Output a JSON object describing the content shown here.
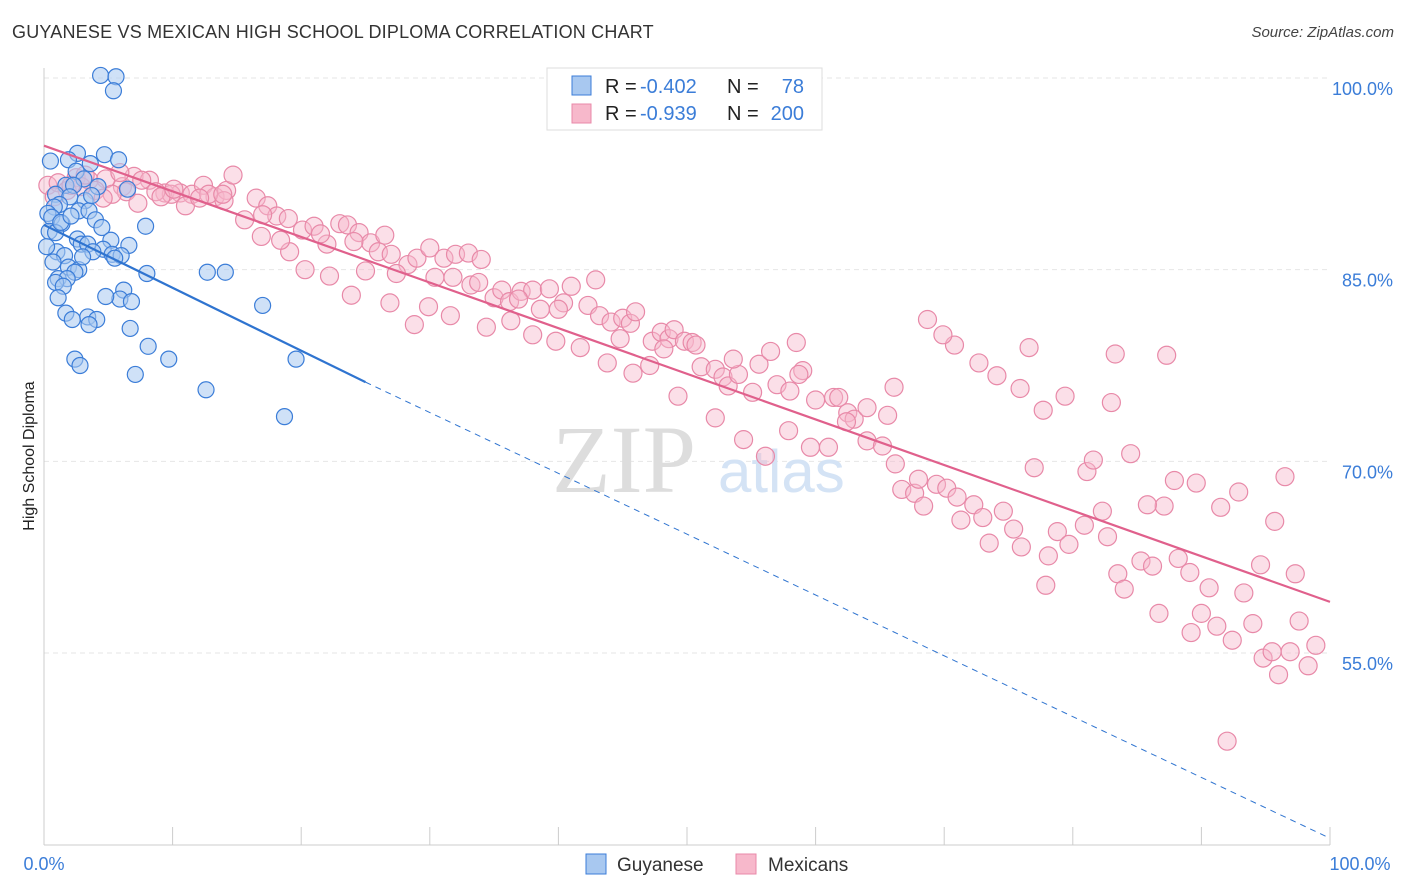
{
  "title": "GUYANESE VS MEXICAN HIGH SCHOOL DIPLOMA CORRELATION CHART",
  "source": "Source: ZipAtlas.com",
  "watermark": {
    "zip": "ZIP",
    "atlas": "atlas"
  },
  "legend": {
    "series": [
      {
        "r_label": "R =",
        "r_value": "-0.402",
        "n_label": "N =",
        "n_value": "78"
      },
      {
        "r_label": "R =",
        "r_value": "-0.939",
        "n_label": "N =",
        "n_value": "200"
      }
    ]
  },
  "colors": {
    "guyanese_fill": "#a8c8f0",
    "guyanese_stroke": "#3b7dd8",
    "guyanese_line": "#2f74d0",
    "mexican_fill": "#f7b8cb",
    "mexican_stroke": "#e889a8",
    "mexican_line": "#e0608c",
    "grid": "#e6e6e6"
  },
  "chart_data": {
    "type": "scatter",
    "title": "GUYANESE VS MEXICAN HIGH SCHOOL DIPLOMA CORRELATION CHART",
    "xlabel": "",
    "ylabel": "High School Diploma",
    "xlim": [
      0,
      100
    ],
    "ylim": [
      40,
      101.5
    ],
    "x_tick_labels": [
      "0.0%",
      "100.0%"
    ],
    "y_ticks": [
      55,
      70,
      85,
      100
    ],
    "y_tick_labels": [
      "55.0%",
      "70.0%",
      "85.0%",
      "100.0%"
    ],
    "grid": true,
    "legend_position": "top-center",
    "series": [
      {
        "name": "Guyanese",
        "R": -0.402,
        "N": 78,
        "trend": {
          "x0": 0,
          "y0": 88.5,
          "x1": 25,
          "y1": 76.2,
          "dashed_to_x": 100,
          "dashed_to_y": 40.5
        },
        "points": [
          [
            4.4,
            100.2
          ],
          [
            5.6,
            100.1
          ],
          [
            5.4,
            99.0
          ],
          [
            2.6,
            94.1
          ],
          [
            4.7,
            94.0
          ],
          [
            1.9,
            93.6
          ],
          [
            5.8,
            93.6
          ],
          [
            0.5,
            93.5
          ],
          [
            3.6,
            93.3
          ],
          [
            2.5,
            92.7
          ],
          [
            3.1,
            92.1
          ],
          [
            1.7,
            91.6
          ],
          [
            2.3,
            91.6
          ],
          [
            4.2,
            91.5
          ],
          [
            6.5,
            91.3
          ],
          [
            0.9,
            90.9
          ],
          [
            2.0,
            90.7
          ],
          [
            3.2,
            90.4
          ],
          [
            1.2,
            90.1
          ],
          [
            0.8,
            89.9
          ],
          [
            2.7,
            89.6
          ],
          [
            3.5,
            89.6
          ],
          [
            0.3,
            89.4
          ],
          [
            0.6,
            89.1
          ],
          [
            4.0,
            88.9
          ],
          [
            1.4,
            88.6
          ],
          [
            7.9,
            88.4
          ],
          [
            4.5,
            88.3
          ],
          [
            0.4,
            88.0
          ],
          [
            0.9,
            87.9
          ],
          [
            2.6,
            87.4
          ],
          [
            5.2,
            87.3
          ],
          [
            2.9,
            87.0
          ],
          [
            3.4,
            87.0
          ],
          [
            6.6,
            86.9
          ],
          [
            4.6,
            86.6
          ],
          [
            1.0,
            86.4
          ],
          [
            3.8,
            86.4
          ],
          [
            1.6,
            86.1
          ],
          [
            5.3,
            86.2
          ],
          [
            6.0,
            86.1
          ],
          [
            0.7,
            85.6
          ],
          [
            1.9,
            85.2
          ],
          [
            2.7,
            85.0
          ],
          [
            2.4,
            84.8
          ],
          [
            12.7,
            84.8
          ],
          [
            14.1,
            84.8
          ],
          [
            8.0,
            84.7
          ],
          [
            1.1,
            84.3
          ],
          [
            1.8,
            84.3
          ],
          [
            0.9,
            84.0
          ],
          [
            1.5,
            83.7
          ],
          [
            6.2,
            83.4
          ],
          [
            5.9,
            82.7
          ],
          [
            6.8,
            82.5
          ],
          [
            17.0,
            82.2
          ],
          [
            1.7,
            81.6
          ],
          [
            3.4,
            81.3
          ],
          [
            2.2,
            81.1
          ],
          [
            4.1,
            81.1
          ],
          [
            3.5,
            80.7
          ],
          [
            6.7,
            80.4
          ],
          [
            8.1,
            79.0
          ],
          [
            2.4,
            78.0
          ],
          [
            9.7,
            78.0
          ],
          [
            2.8,
            77.5
          ],
          [
            19.6,
            78.0
          ],
          [
            7.1,
            76.8
          ],
          [
            12.6,
            75.6
          ],
          [
            18.7,
            73.5
          ],
          [
            4.8,
            82.9
          ],
          [
            3.0,
            86.0
          ],
          [
            5.5,
            85.9
          ],
          [
            1.3,
            88.7
          ],
          [
            2.1,
            89.2
          ],
          [
            0.2,
            86.8
          ],
          [
            3.7,
            90.8
          ],
          [
            1.1,
            82.8
          ]
        ]
      },
      {
        "name": "Mexicans",
        "R": -0.939,
        "N": 200,
        "trend": {
          "x0": 0,
          "y0": 94.7,
          "x1": 100,
          "y1": 59.0
        },
        "points": [
          [
            0.3,
            91.6
          ],
          [
            1.1,
            91.8
          ],
          [
            2.5,
            92.2
          ],
          [
            3.5,
            92.0
          ],
          [
            4.8,
            92.1
          ],
          [
            6.1,
            91.5
          ],
          [
            7.0,
            92.3
          ],
          [
            8.2,
            92.0
          ],
          [
            9.4,
            91.0
          ],
          [
            10.6,
            91.0
          ],
          [
            11.5,
            90.9
          ],
          [
            12.4,
            91.6
          ],
          [
            13.3,
            90.7
          ],
          [
            14.2,
            91.2
          ],
          [
            14.7,
            92.4
          ],
          [
            16.5,
            90.6
          ],
          [
            17.4,
            90.0
          ],
          [
            18.1,
            89.2
          ],
          [
            19.0,
            89.0
          ],
          [
            20.1,
            88.1
          ],
          [
            21.0,
            88.4
          ],
          [
            22.0,
            87.0
          ],
          [
            23.0,
            88.6
          ],
          [
            23.6,
            88.5
          ],
          [
            24.5,
            87.9
          ],
          [
            25.4,
            87.1
          ],
          [
            26.0,
            86.4
          ],
          [
            26.5,
            87.7
          ],
          [
            27.0,
            86.2
          ],
          [
            28.3,
            85.4
          ],
          [
            29.0,
            85.9
          ],
          [
            30.0,
            86.7
          ],
          [
            31.1,
            85.9
          ],
          [
            32.0,
            86.2
          ],
          [
            31.8,
            84.4
          ],
          [
            33.0,
            86.3
          ],
          [
            33.2,
            83.8
          ],
          [
            34.0,
            85.8
          ],
          [
            35.0,
            82.8
          ],
          [
            35.6,
            83.4
          ],
          [
            36.2,
            82.5
          ],
          [
            37.1,
            83.3
          ],
          [
            38.0,
            83.4
          ],
          [
            38.6,
            81.9
          ],
          [
            39.3,
            83.5
          ],
          [
            40.4,
            82.4
          ],
          [
            41.0,
            83.7
          ],
          [
            42.3,
            82.2
          ],
          [
            42.9,
            84.2
          ],
          [
            43.2,
            81.4
          ],
          [
            44.1,
            80.9
          ],
          [
            45.0,
            81.2
          ],
          [
            45.6,
            80.8
          ],
          [
            46.0,
            81.7
          ],
          [
            47.3,
            79.4
          ],
          [
            48.0,
            80.1
          ],
          [
            48.6,
            79.6
          ],
          [
            49.0,
            80.3
          ],
          [
            49.8,
            79.4
          ],
          [
            50.4,
            79.3
          ],
          [
            51.1,
            77.4
          ],
          [
            52.2,
            77.2
          ],
          [
            52.8,
            76.6
          ],
          [
            53.2,
            75.9
          ],
          [
            54.0,
            76.8
          ],
          [
            55.1,
            75.4
          ],
          [
            55.6,
            77.6
          ],
          [
            56.5,
            78.6
          ],
          [
            57.0,
            76.0
          ],
          [
            58.0,
            75.5
          ],
          [
            58.5,
            79.3
          ],
          [
            59.0,
            77.1
          ],
          [
            60.0,
            74.8
          ],
          [
            61.4,
            75.0
          ],
          [
            62.5,
            73.8
          ],
          [
            63.0,
            73.3
          ],
          [
            64.0,
            71.6
          ],
          [
            65.2,
            71.2
          ],
          [
            66.2,
            69.8
          ],
          [
            66.7,
            67.8
          ],
          [
            67.7,
            67.5
          ],
          [
            68.4,
            66.5
          ],
          [
            69.4,
            68.2
          ],
          [
            70.2,
            67.9
          ],
          [
            71.3,
            65.4
          ],
          [
            72.3,
            66.6
          ],
          [
            73.0,
            65.6
          ],
          [
            74.6,
            66.1
          ],
          [
            75.4,
            64.7
          ],
          [
            76.0,
            63.3
          ],
          [
            77.0,
            69.5
          ],
          [
            78.1,
            62.6
          ],
          [
            78.8,
            64.5
          ],
          [
            79.7,
            63.5
          ],
          [
            81.1,
            69.2
          ],
          [
            82.3,
            66.1
          ],
          [
            82.7,
            64.1
          ],
          [
            83.5,
            61.2
          ],
          [
            84.0,
            60.0
          ],
          [
            85.3,
            62.2
          ],
          [
            86.2,
            61.8
          ],
          [
            87.1,
            66.5
          ],
          [
            88.2,
            62.4
          ],
          [
            89.1,
            61.3
          ],
          [
            90.0,
            58.1
          ],
          [
            90.6,
            60.1
          ],
          [
            91.2,
            57.1
          ],
          [
            92.4,
            56.0
          ],
          [
            93.3,
            59.7
          ],
          [
            94.0,
            57.3
          ],
          [
            94.8,
            54.6
          ],
          [
            95.5,
            55.1
          ],
          [
            96.0,
            53.3
          ],
          [
            96.9,
            55.1
          ],
          [
            97.6,
            57.5
          ],
          [
            98.3,
            54.0
          ],
          [
            98.9,
            55.6
          ],
          [
            97.3,
            61.2
          ],
          [
            95.7,
            65.3
          ],
          [
            96.5,
            68.8
          ],
          [
            92.9,
            67.6
          ],
          [
            91.5,
            66.4
          ],
          [
            89.6,
            68.3
          ],
          [
            87.9,
            68.5
          ],
          [
            85.8,
            66.6
          ],
          [
            84.5,
            70.6
          ],
          [
            83.0,
            74.6
          ],
          [
            81.6,
            70.1
          ],
          [
            79.4,
            75.1
          ],
          [
            77.7,
            74.0
          ],
          [
            75.9,
            75.7
          ],
          [
            74.1,
            76.7
          ],
          [
            72.7,
            77.7
          ],
          [
            70.8,
            79.1
          ],
          [
            87.3,
            78.3
          ],
          [
            83.3,
            78.4
          ],
          [
            76.6,
            78.9
          ],
          [
            69.9,
            79.9
          ],
          [
            68.7,
            81.1
          ],
          [
            66.1,
            75.8
          ],
          [
            64.0,
            74.2
          ],
          [
            62.4,
            73.1
          ],
          [
            61.0,
            71.1
          ],
          [
            59.6,
            71.1
          ],
          [
            57.9,
            72.4
          ],
          [
            56.1,
            70.4
          ],
          [
            54.4,
            71.7
          ],
          [
            52.2,
            73.4
          ],
          [
            49.3,
            75.1
          ],
          [
            47.1,
            77.5
          ],
          [
            45.8,
            76.9
          ],
          [
            43.8,
            77.7
          ],
          [
            41.7,
            78.9
          ],
          [
            39.8,
            79.4
          ],
          [
            38.0,
            79.9
          ],
          [
            36.3,
            81.0
          ],
          [
            34.4,
            80.5
          ],
          [
            31.6,
            81.4
          ],
          [
            29.9,
            82.1
          ],
          [
            28.8,
            80.7
          ],
          [
            26.9,
            82.4
          ],
          [
            25.0,
            84.9
          ],
          [
            23.9,
            83.0
          ],
          [
            22.2,
            84.5
          ],
          [
            20.3,
            85.0
          ],
          [
            19.1,
            86.4
          ],
          [
            18.4,
            87.3
          ],
          [
            16.9,
            87.6
          ],
          [
            15.6,
            88.9
          ],
          [
            14.0,
            90.4
          ],
          [
            12.8,
            90.9
          ],
          [
            11.0,
            90.0
          ],
          [
            9.9,
            90.9
          ],
          [
            8.7,
            91.1
          ],
          [
            7.6,
            92.0
          ],
          [
            6.4,
            91.1
          ],
          [
            5.3,
            90.9
          ],
          [
            4.0,
            91.2
          ],
          [
            2.9,
            91.5
          ],
          [
            1.8,
            91.2
          ],
          [
            0.8,
            90.7
          ],
          [
            3.2,
            92.4
          ],
          [
            5.9,
            92.6
          ],
          [
            9.1,
            90.7
          ],
          [
            13.9,
            90.9
          ],
          [
            17.0,
            89.3
          ],
          [
            21.5,
            87.8
          ],
          [
            24.1,
            87.2
          ],
          [
            27.4,
            84.7
          ],
          [
            30.4,
            84.4
          ],
          [
            33.8,
            84.0
          ],
          [
            36.9,
            82.7
          ],
          [
            40.0,
            81.9
          ],
          [
            44.8,
            79.6
          ],
          [
            48.2,
            78.8
          ],
          [
            50.7,
            79.1
          ],
          [
            53.6,
            78.0
          ],
          [
            58.7,
            76.8
          ],
          [
            61.8,
            75.0
          ],
          [
            65.6,
            73.6
          ],
          [
            68.0,
            68.6
          ],
          [
            71.0,
            67.2
          ],
          [
            73.5,
            63.6
          ],
          [
            77.9,
            60.3
          ],
          [
            80.9,
            65.0
          ],
          [
            86.7,
            58.1
          ],
          [
            89.2,
            56.6
          ],
          [
            92.0,
            48.1
          ],
          [
            94.6,
            61.9
          ],
          [
            2.1,
            91.6
          ],
          [
            4.6,
            90.6
          ],
          [
            7.3,
            90.2
          ],
          [
            10.1,
            91.3
          ],
          [
            12.1,
            90.6
          ]
        ]
      }
    ]
  }
}
